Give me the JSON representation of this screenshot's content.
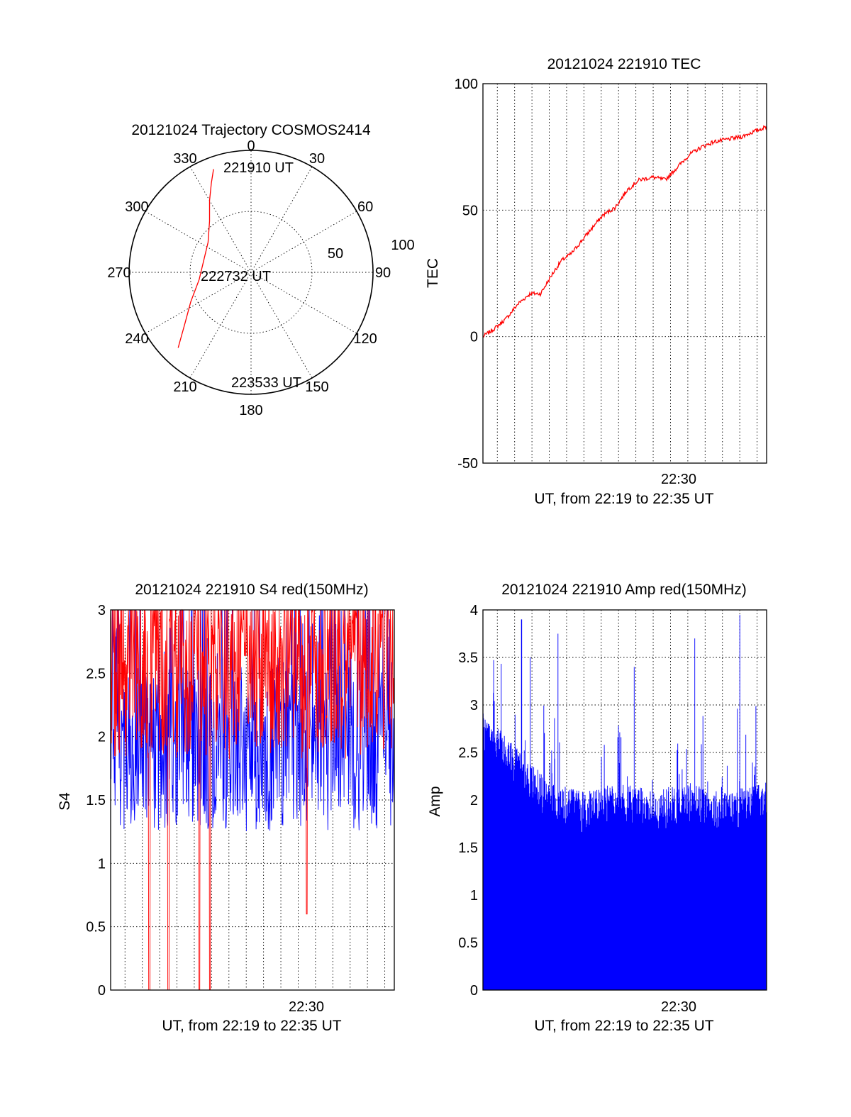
{
  "colors": {
    "trace": "#ff0000",
    "amp": "#0000ff",
    "grid": "#000000",
    "background": "#ffffff"
  },
  "chart_data": [
    {
      "id": "trajectory",
      "type": "polar",
      "title": "20121024 Trajectory COSMOS2414",
      "angle_ticks": [
        "0",
        "30",
        "60",
        "90",
        "120",
        "150",
        "180",
        "210",
        "240",
        "270",
        "300",
        "330"
      ],
      "radial_tick_labels": [
        "50",
        "100"
      ],
      "rlim": [
        0,
        100
      ],
      "grid": true,
      "series": [
        {
          "color": "#ff0000",
          "points": [
            [
              340,
              90
            ],
            [
              336,
              80
            ],
            [
              330,
              68
            ],
            [
              321,
              54
            ],
            [
              305,
              43
            ],
            [
              282,
              40
            ],
            [
              262,
              43
            ],
            [
              244,
              55
            ],
            [
              232,
              69
            ],
            [
              224,
              86
            ]
          ]
        }
      ],
      "annotations": [
        {
          "text": "221910 UT",
          "angle": 340,
          "r": 90
        },
        {
          "text": "222732 UT",
          "angle": 270,
          "r": 0
        },
        {
          "text": "223533 UT",
          "angle": 224,
          "r": 86
        }
      ]
    },
    {
      "id": "tec",
      "type": "line",
      "title": "20121024 221910 TEC",
      "xlabel": "UT, from 22:19 to 22:35 UT",
      "ylabel": "TEC",
      "x_tick_labels": [
        "22:30"
      ],
      "y_tick_labels": [
        "-50",
        "0",
        "50",
        "100"
      ],
      "ylim": [
        -50,
        100
      ],
      "xlim_minutes": [
        19.17,
        35.55
      ],
      "grid": true,
      "series": [
        {
          "color": "#ff0000",
          "x": [
            19.17,
            19.8,
            20.5,
            21.2,
            21.9,
            22.5,
            23.2,
            23.7,
            24.3,
            25.0,
            25.6,
            26.1,
            26.8,
            27.5,
            28.2,
            29.0,
            29.7,
            30.4,
            31.1,
            31.8,
            32.5,
            33.3,
            34.1,
            34.8,
            35.55
          ],
          "y": [
            0,
            3,
            7,
            13,
            17,
            17,
            25,
            30,
            33,
            39,
            44,
            48,
            51,
            58,
            62,
            63,
            62,
            67,
            72,
            75,
            77,
            78,
            79,
            81,
            83
          ]
        }
      ]
    },
    {
      "id": "s4",
      "type": "line",
      "title": "20121024 221910 S4 red(150MHz)",
      "xlabel": "UT, from 22:19 to 22:35 UT",
      "ylabel": "S4",
      "x_tick_labels": [
        "22:30"
      ],
      "y_tick_labels": [
        "0",
        "0.5",
        "1",
        "1.5",
        "2",
        "2.5",
        "3"
      ],
      "ylim": [
        0,
        3
      ],
      "xlim_minutes": [
        19.17,
        35.55
      ],
      "grid": true,
      "series": [
        {
          "color": "#0000ff",
          "mean": 1.9,
          "range": [
            1.0,
            3.0
          ]
        },
        {
          "color": "#ff0000",
          "range": [
            1.5,
            3.0
          ],
          "dips": [
            [
              21.4,
              0
            ],
            [
              22.5,
              0
            ],
            [
              24.3,
              0
            ],
            [
              24.9,
              0
            ],
            [
              30.5,
              0.6
            ]
          ]
        }
      ]
    },
    {
      "id": "amp",
      "type": "bar",
      "title": "20121024 221910 Amp red(150MHz)",
      "xlabel": "UT, from 22:19 to 22:35 UT",
      "ylabel": "Amp",
      "x_tick_labels": [
        "22:30"
      ],
      "y_tick_labels": [
        "0",
        "0.5",
        "1",
        "1.5",
        "2",
        "2.5",
        "3",
        "3.5",
        "4"
      ],
      "ylim": [
        0,
        4
      ],
      "xlim_minutes": [
        19.17,
        35.55
      ],
      "grid": true,
      "series": [
        {
          "color": "#0000ff",
          "envelope_x": [
            19.17,
            20.5,
            21.5,
            23,
            25,
            27,
            29,
            31,
            33,
            35.55
          ],
          "envelope_y": [
            2.6,
            2.4,
            2.2,
            1.9,
            1.8,
            1.9,
            1.8,
            1.9,
            1.8,
            1.9
          ],
          "peaks": [
            [
              21.4,
              3.9
            ],
            [
              21.9,
              3.5
            ],
            [
              23.5,
              3.75
            ],
            [
              27.9,
              3.4
            ],
            [
              31.4,
              3.7
            ],
            [
              34.0,
              3.95
            ]
          ]
        }
      ]
    }
  ]
}
